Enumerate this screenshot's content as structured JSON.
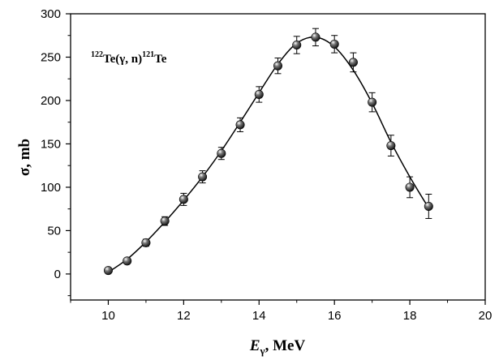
{
  "chart_data": {
    "type": "scatter",
    "title": "",
    "annotation": {
      "parts": [
        {
          "text": "122",
          "sup": true
        },
        {
          "text": "Te(γ, n)",
          "sup": false
        },
        {
          "text": "121",
          "sup": true
        },
        {
          "text": "Te",
          "sup": false
        }
      ]
    },
    "xlabel": {
      "main": "E",
      "sub": "γ",
      "rest": ", MeV"
    },
    "ylabel": "σ, mb",
    "xlim": [
      9,
      20
    ],
    "ylim": [
      -30,
      300
    ],
    "x_ticks": [
      10,
      12,
      14,
      16,
      18,
      20
    ],
    "x_tick_labels": [
      "10",
      "12",
      "14",
      "16",
      "18",
      "20"
    ],
    "y_ticks": [
      0,
      50,
      100,
      150,
      200,
      250,
      300
    ],
    "y_tick_labels": [
      "0",
      "50",
      "100",
      "150",
      "200",
      "250",
      "300"
    ],
    "grid": false,
    "series": [
      {
        "kind": "points",
        "x": [
          10,
          10.5,
          11,
          11.5,
          12,
          12.5,
          13,
          13.5,
          14,
          14.5,
          15,
          15.5,
          16,
          16.5,
          17,
          17.5,
          18,
          18.5
        ],
        "y": [
          4,
          15,
          36,
          61,
          86,
          112,
          139,
          172,
          207,
          240,
          264,
          273,
          265,
          244,
          198,
          148,
          100,
          78
        ],
        "err": [
          3,
          3,
          4,
          5,
          7,
          7,
          7,
          8,
          9,
          9,
          10,
          10,
          10,
          11,
          11,
          12,
          12,
          14
        ]
      },
      {
        "kind": "fit",
        "x": [
          10,
          10.5,
          11,
          11.5,
          12,
          12.5,
          13,
          13.5,
          14,
          14.5,
          15,
          15.5,
          16,
          16.5,
          17,
          17.5,
          18,
          18.5
        ],
        "y": [
          2,
          17,
          37,
          60,
          85,
          112,
          142,
          175,
          209,
          242,
          266,
          273,
          262,
          235,
          197,
          152,
          112,
          76
        ]
      }
    ]
  }
}
